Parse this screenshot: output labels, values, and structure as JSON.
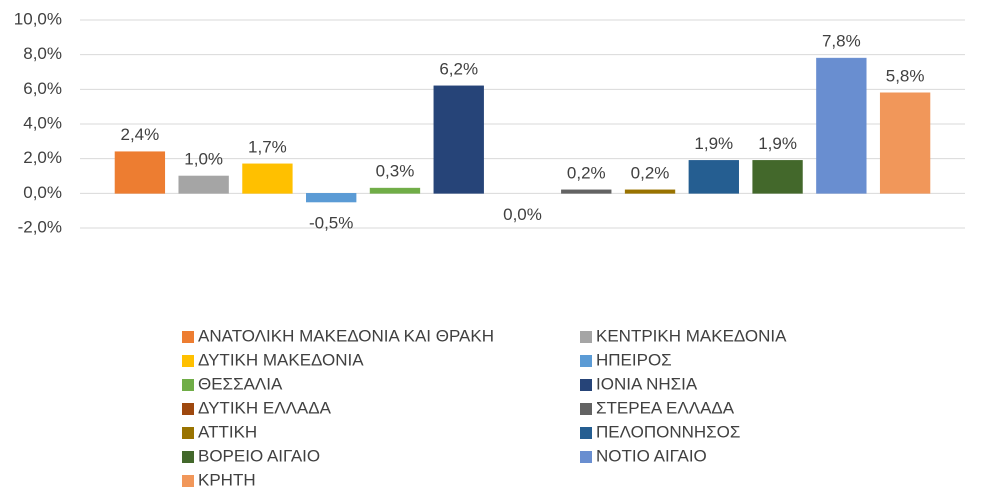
{
  "chart_data": {
    "type": "bar",
    "categories": [
      null
    ],
    "series": [
      {
        "name": "ΑΝΑΤΟΛΙΚΗ ΜΑΚΕΔΟΝΙΑ ΚΑΙ ΘΡΑΚΗ",
        "color": "#ED7D31",
        "values": [
          2.4
        ],
        "value_labels": [
          "2,4%"
        ]
      },
      {
        "name": "ΚΕΝΤΡΙΚΗ ΜΑΚΕΔΟΝΙΑ",
        "color": "#A5A5A5",
        "values": [
          1.0
        ],
        "value_labels": [
          "1,0%"
        ]
      },
      {
        "name": "ΔΥΤΙΚΗ ΜΑΚΕΔΟΝΙΑ",
        "color": "#FFC000",
        "values": [
          1.7
        ],
        "value_labels": [
          "1,7%"
        ]
      },
      {
        "name": "ΗΠΕΙΡΟΣ",
        "color": "#5B9BD5",
        "values": [
          -0.5
        ],
        "value_labels": [
          "-0,5%"
        ]
      },
      {
        "name": "ΘΕΣΣΑΛΙΑ",
        "color": "#70AD47",
        "values": [
          0.3
        ],
        "value_labels": [
          "0,3%"
        ]
      },
      {
        "name": "ΙΟΝΙΑ ΝΗΣΙΑ",
        "color": "#264478",
        "values": [
          6.2
        ],
        "value_labels": [
          "6,2%"
        ]
      },
      {
        "name": "ΔΥΤΙΚΗ ΕΛΛΑΔΑ",
        "color": "#9E480E",
        "values": [
          0.0
        ],
        "value_labels": [
          "0,0%"
        ]
      },
      {
        "name": "ΣΤΕΡΕΑ ΕΛΛΑΔΑ",
        "color": "#636363",
        "values": [
          0.2
        ],
        "value_labels": [
          "0,2%"
        ]
      },
      {
        "name": "ΑΤΤΙΚΗ",
        "color": "#997300",
        "values": [
          0.2
        ],
        "value_labels": [
          "0,2%"
        ]
      },
      {
        "name": "ΠΕΛΟΠΟΝΝΗΣΟΣ",
        "color": "#255E91",
        "values": [
          1.9
        ],
        "value_labels": [
          "1,9%"
        ]
      },
      {
        "name": "ΒΟΡΕΙΟ ΑΙΓΑΙΟ",
        "color": "#43682B",
        "values": [
          1.9
        ],
        "value_labels": [
          "1,9%"
        ]
      },
      {
        "name": "ΝΟΤΙΟ ΑΙΓΑΙΟ",
        "color": "#698ED0",
        "values": [
          7.8
        ],
        "value_labels": [
          "7,8%"
        ]
      },
      {
        "name": "ΚΡΗΤΗ",
        "color": "#F1975A",
        "values": [
          5.8
        ],
        "value_labels": [
          "5,8%"
        ]
      }
    ],
    "ylim": [
      -2,
      10
    ],
    "yticks": [
      {
        "value": -2,
        "label": "-2,0%"
      },
      {
        "value": 0,
        "label": "0,0%"
      },
      {
        "value": 2,
        "label": "2,0%"
      },
      {
        "value": 4,
        "label": "4,0%"
      },
      {
        "value": 6,
        "label": "6,0%"
      },
      {
        "value": 8,
        "label": "8,0%"
      },
      {
        "value": 10,
        "label": "10,0%"
      }
    ],
    "grid": true,
    "legend": "bottom"
  }
}
